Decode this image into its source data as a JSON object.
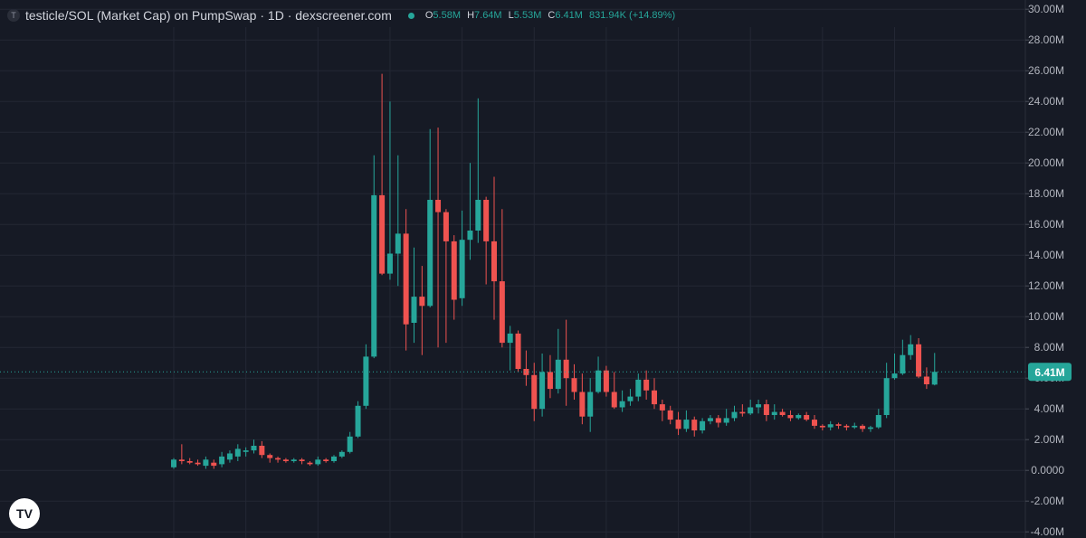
{
  "header": {
    "coin_glyph": "T",
    "title": "testicle/SOL (Market Cap) on PumpSwap · 1D · dexscreener.com",
    "ohlc": {
      "o_label": "O",
      "o": "5.58M",
      "h_label": "H",
      "h": "7.64M",
      "l_label": "L",
      "l": "5.53M",
      "c_label": "C",
      "c": "6.41M",
      "change": "831.94K (+14.89%)"
    }
  },
  "colors": {
    "background": "#161a25",
    "up": "#26a69a",
    "down": "#ef5350",
    "grid": "#232734",
    "axis_text": "#b2b5be",
    "price_tag": "#26a69a"
  },
  "logo": {
    "icon": "tradingview-logo-icon",
    "text": "TV"
  },
  "chart_data": {
    "type": "candlestick",
    "y_unit": "M",
    "ylim": [
      -4.4,
      30.6
    ],
    "y_ticks": [
      "30.00M",
      "28.00M",
      "26.00M",
      "24.00M",
      "22.00M",
      "20.00M",
      "18.00M",
      "16.00M",
      "14.00M",
      "12.00M",
      "10.00M",
      "8.00M",
      "6.00M",
      "4.00M",
      "2.00M",
      "0.0000",
      "-2.00M",
      "-4.00M"
    ],
    "y_tick_values": [
      30,
      28,
      26,
      24,
      22,
      20,
      18,
      16,
      14,
      12,
      10,
      8,
      6,
      4,
      2,
      0,
      -2,
      -4
    ],
    "last_price": 6.41,
    "last_price_label": "6.41M",
    "candles": [
      [
        0.2,
        0.7,
        0.1,
        0.8
      ],
      [
        0.7,
        0.6,
        0.4,
        1.7
      ],
      [
        0.6,
        0.5,
        0.4,
        0.8
      ],
      [
        0.5,
        0.4,
        0.3,
        0.7
      ],
      [
        0.3,
        0.7,
        0.1,
        0.9
      ],
      [
        0.5,
        0.3,
        0.1,
        0.7
      ],
      [
        0.4,
        0.9,
        0.2,
        1.2
      ],
      [
        0.7,
        1.1,
        0.5,
        1.3
      ],
      [
        0.9,
        1.4,
        0.6,
        1.7
      ],
      [
        1.2,
        1.3,
        0.9,
        1.5
      ],
      [
        1.3,
        1.6,
        1.1,
        2.0
      ],
      [
        1.6,
        1.0,
        0.8,
        1.9
      ],
      [
        1.0,
        0.8,
        0.5,
        1.1
      ],
      [
        0.8,
        0.7,
        0.5,
        0.9
      ],
      [
        0.7,
        0.6,
        0.5,
        0.8
      ],
      [
        0.6,
        0.7,
        0.5,
        0.8
      ],
      [
        0.7,
        0.6,
        0.4,
        0.8
      ],
      [
        0.5,
        0.4,
        0.3,
        0.6
      ],
      [
        0.4,
        0.7,
        0.3,
        0.9
      ],
      [
        0.7,
        0.6,
        0.5,
        0.8
      ],
      [
        0.6,
        0.9,
        0.5,
        1.0
      ],
      [
        0.9,
        1.2,
        0.8,
        1.3
      ],
      [
        1.2,
        2.2,
        1.1,
        2.5
      ],
      [
        2.2,
        4.2,
        2.1,
        4.5
      ],
      [
        4.2,
        7.4,
        4.0,
        8.2
      ],
      [
        7.4,
        17.9,
        7.3,
        20.5
      ],
      [
        17.9,
        12.8,
        12.7,
        25.8
      ],
      [
        12.8,
        14.1,
        12.4,
        24.0
      ],
      [
        14.1,
        15.4,
        12.0,
        20.5
      ],
      [
        15.4,
        9.5,
        7.8,
        17.0
      ],
      [
        9.6,
        11.3,
        8.3,
        14.5
      ],
      [
        11.3,
        10.7,
        7.5,
        13.3
      ],
      [
        10.7,
        17.6,
        10.6,
        22.2
      ],
      [
        17.6,
        16.8,
        8.0,
        22.3
      ],
      [
        16.8,
        14.9,
        8.3,
        17.0
      ],
      [
        14.9,
        11.1,
        9.8,
        15.3
      ],
      [
        11.2,
        15.0,
        10.7,
        16.9
      ],
      [
        15.0,
        15.6,
        13.7,
        20.0
      ],
      [
        15.6,
        17.6,
        14.8,
        24.2
      ],
      [
        17.6,
        14.9,
        12.1,
        17.8
      ],
      [
        14.9,
        12.3,
        9.8,
        19.1
      ],
      [
        12.3,
        8.3,
        8.0,
        17.0
      ],
      [
        8.3,
        8.9,
        6.5,
        9.4
      ],
      [
        8.9,
        6.6,
        6.4,
        9.1
      ],
      [
        6.6,
        6.2,
        5.5,
        7.8
      ],
      [
        6.2,
        4.0,
        3.2,
        7.0
      ],
      [
        4.0,
        6.4,
        3.5,
        7.6
      ],
      [
        6.4,
        5.3,
        4.7,
        7.5
      ],
      [
        5.3,
        7.2,
        5.0,
        9.2
      ],
      [
        7.2,
        6.0,
        4.2,
        9.8
      ],
      [
        6.0,
        5.1,
        4.6,
        6.9
      ],
      [
        5.1,
        3.5,
        3.0,
        6.3
      ],
      [
        3.5,
        5.1,
        2.5,
        6.0
      ],
      [
        5.1,
        6.5,
        5.0,
        7.4
      ],
      [
        6.5,
        5.1,
        4.8,
        6.8
      ],
      [
        5.1,
        4.1,
        4.0,
        6.4
      ],
      [
        4.1,
        4.5,
        3.8,
        5.2
      ],
      [
        4.5,
        4.8,
        4.2,
        5.3
      ],
      [
        4.8,
        5.9,
        4.5,
        6.3
      ],
      [
        5.9,
        5.2,
        4.6,
        6.5
      ],
      [
        5.2,
        4.3,
        4.0,
        6.0
      ],
      [
        4.3,
        3.9,
        3.2,
        4.6
      ],
      [
        3.9,
        3.3,
        3.0,
        4.2
      ],
      [
        3.3,
        2.7,
        2.3,
        3.8
      ],
      [
        2.7,
        3.3,
        2.5,
        3.9
      ],
      [
        3.3,
        2.6,
        2.2,
        3.5
      ],
      [
        2.6,
        3.2,
        2.4,
        3.4
      ],
      [
        3.2,
        3.4,
        3.0,
        3.6
      ],
      [
        3.4,
        3.1,
        2.8,
        3.6
      ],
      [
        3.1,
        3.4,
        2.9,
        4.0
      ],
      [
        3.4,
        3.8,
        3.2,
        4.2
      ],
      [
        3.8,
        3.7,
        3.5,
        4.3
      ],
      [
        3.7,
        4.1,
        3.6,
        4.6
      ],
      [
        4.1,
        4.3,
        3.7,
        4.6
      ],
      [
        4.3,
        3.6,
        3.2,
        4.6
      ],
      [
        3.6,
        3.8,
        3.3,
        4.3
      ],
      [
        3.8,
        3.6,
        3.5,
        4.0
      ],
      [
        3.6,
        3.4,
        3.2,
        3.9
      ],
      [
        3.4,
        3.6,
        3.3,
        3.7
      ],
      [
        3.6,
        3.3,
        3.2,
        3.8
      ],
      [
        3.3,
        2.9,
        2.7,
        3.6
      ],
      [
        2.9,
        2.8,
        2.6,
        3.0
      ],
      [
        2.8,
        3.0,
        2.6,
        3.2
      ],
      [
        3.0,
        2.9,
        2.7,
        3.1
      ],
      [
        2.9,
        2.8,
        2.6,
        3.0
      ],
      [
        2.8,
        2.9,
        2.7,
        3.1
      ],
      [
        2.9,
        2.7,
        2.5,
        3.0
      ],
      [
        2.7,
        2.8,
        2.5,
        2.9
      ],
      [
        2.8,
        3.6,
        2.7,
        4.0
      ],
      [
        3.6,
        6.0,
        3.4,
        7.0
      ],
      [
        6.0,
        6.3,
        5.9,
        7.6
      ],
      [
        6.3,
        7.5,
        6.2,
        8.5
      ],
      [
        7.5,
        8.2,
        7.2,
        8.8
      ],
      [
        8.2,
        6.1,
        6.0,
        8.6
      ],
      [
        6.1,
        5.6,
        5.3,
        6.7
      ],
      [
        5.58,
        6.41,
        5.53,
        7.64
      ]
    ]
  }
}
